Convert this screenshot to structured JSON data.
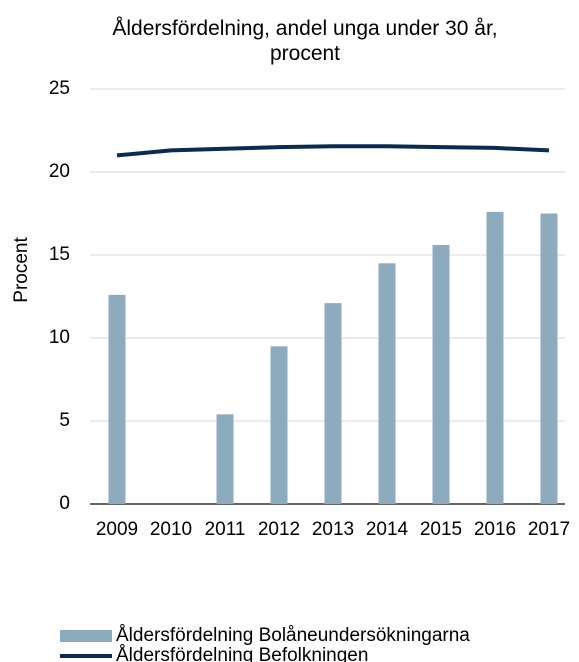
{
  "chart_data": {
    "type": "bar",
    "title": "Åldersfördelning, andel unga under 30 år, procent",
    "y_label": "Procent",
    "categories": [
      "2009",
      "2010",
      "2011",
      "2012",
      "2013",
      "2014",
      "2015",
      "2016",
      "2017"
    ],
    "series": [
      {
        "name": "Åldersfördelning Bolåneundersökningarna",
        "type": "bar",
        "color": "#8eaabd",
        "values": [
          12.6,
          null,
          5.4,
          9.5,
          12.1,
          14.5,
          15.6,
          17.6,
          17.5
        ]
      },
      {
        "name": "Åldersfördelning Befolkningen",
        "type": "line",
        "color": "#0d2a50",
        "values": [
          21.0,
          21.3,
          21.4,
          21.5,
          21.55,
          21.55,
          21.5,
          21.45,
          21.3
        ]
      }
    ],
    "ylim": [
      0,
      25
    ],
    "yticks": [
      0,
      5,
      10,
      15,
      20,
      25
    ],
    "grid": true,
    "legend": "bottom"
  }
}
